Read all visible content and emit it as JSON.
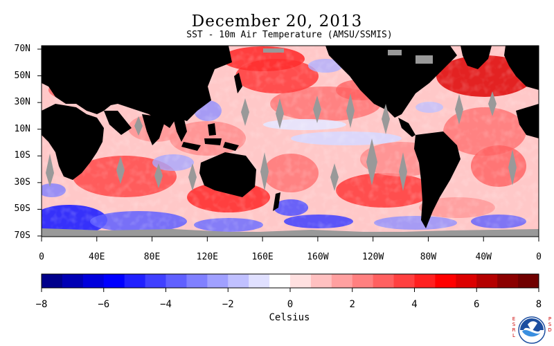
{
  "title": "December 20, 2013",
  "subtitle": "SST - 10m Air Temperature (AMSU/SSMIS)",
  "lat_labels": [
    "70N",
    "50N",
    "30N",
    "10N",
    "10S",
    "30S",
    "50S",
    "70S"
  ],
  "lon_labels": [
    "0",
    "40E",
    "80E",
    "120E",
    "160E",
    "160W",
    "120W",
    "80W",
    "40W",
    "0"
  ],
  "colorbar": {
    "label": "Celsius",
    "ticks": [
      "-8",
      "-6",
      "-4",
      "-2",
      "0",
      "2",
      "4",
      "6",
      "8"
    ],
    "colors": [
      "#00008b",
      "#0000b4",
      "#0000dc",
      "#0000ff",
      "#2020ff",
      "#4040ff",
      "#6060ff",
      "#8080ff",
      "#a0a0ff",
      "#c0c0ff",
      "#e0e0ff",
      "#ffffff",
      "#ffe0e0",
      "#ffc0c0",
      "#ffa0a0",
      "#ff8080",
      "#ff6060",
      "#ff4040",
      "#ff2020",
      "#ff0000",
      "#dc0000",
      "#b40000",
      "#8b0000",
      "#700000"
    ]
  },
  "map": {
    "land_color": "#000000",
    "ice_color": "#999999",
    "lat_range": [
      -70,
      70
    ],
    "lon_range": [
      0,
      360
    ]
  },
  "logo": {
    "left_text": "ESRL",
    "right_text": "PSD",
    "name": "NOAA",
    "icon": "noaa-logo-icon"
  }
}
